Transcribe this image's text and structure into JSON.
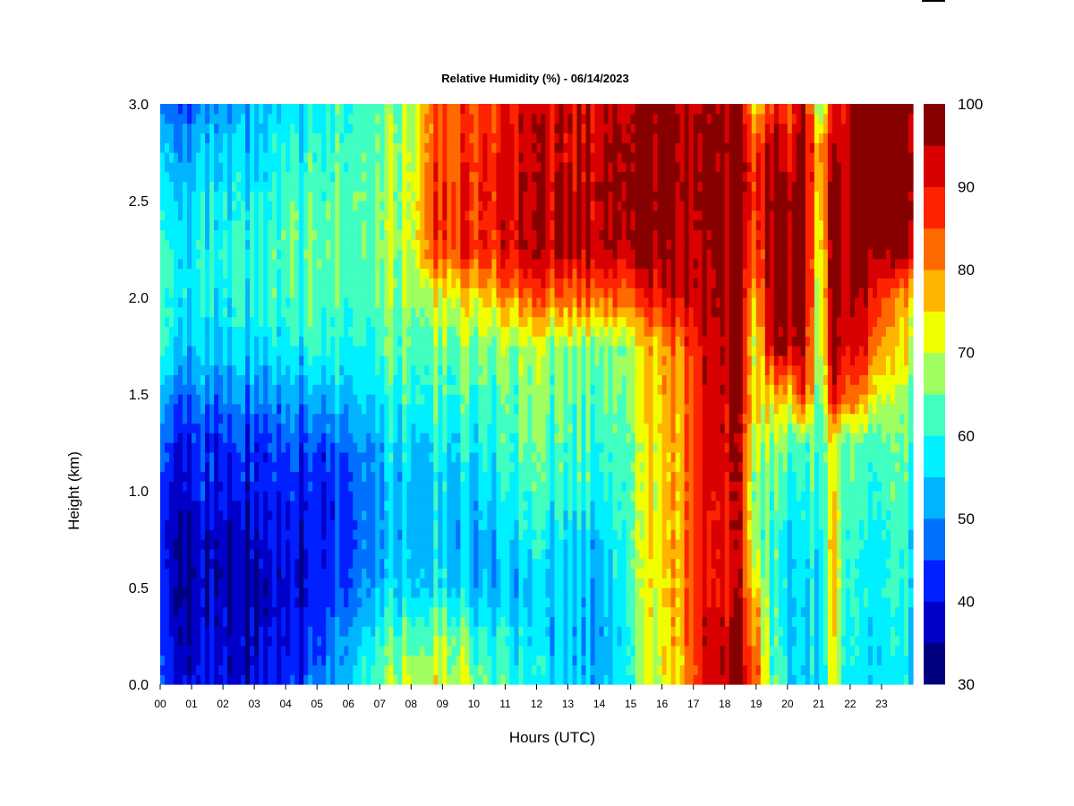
{
  "chart_data": {
    "type": "heatmap",
    "title": "Relative Humidity (%) - 06/14/2023",
    "xlabel": "Hours (UTC)",
    "ylabel": "Height (km)",
    "xlim": [
      0,
      24
    ],
    "ylim": [
      0,
      3
    ],
    "x_ticks": [
      "00",
      "01",
      "02",
      "03",
      "04",
      "05",
      "06",
      "07",
      "08",
      "09",
      "10",
      "11",
      "12",
      "13",
      "14",
      "15",
      "16",
      "17",
      "18",
      "19",
      "20",
      "21",
      "22",
      "23"
    ],
    "y_ticks": [
      "0.0",
      "0.5",
      "1.0",
      "1.5",
      "2.0",
      "2.5",
      "3.0"
    ],
    "hours": [
      0,
      0.5,
      1,
      1.5,
      2,
      2.5,
      3,
      3.5,
      4,
      4.5,
      5,
      5.5,
      6,
      6.5,
      7,
      7.5,
      8,
      8.5,
      9,
      9.5,
      10,
      10.5,
      11,
      11.5,
      12,
      12.5,
      13,
      13.5,
      14,
      14.5,
      15,
      15.5,
      16,
      16.5,
      17,
      17.5,
      18,
      18.5,
      19,
      19.5,
      20,
      20.5,
      21,
      21.5,
      22,
      22.5,
      23,
      23.5
    ],
    "heights_km": [
      0.0,
      0.25,
      0.5,
      0.75,
      1.0,
      1.25,
      1.5,
      1.75,
      2.0,
      2.25,
      2.5,
      2.75,
      3.0
    ],
    "rh_percent": [
      [
        48,
        42,
        38,
        40,
        38,
        36,
        38,
        40,
        40,
        44,
        46,
        52,
        56,
        62,
        66,
        68,
        70,
        72,
        72,
        70,
        66,
        62,
        60,
        58,
        56,
        56,
        54,
        54,
        54,
        56,
        62,
        70,
        72,
        76,
        84,
        92,
        96,
        94,
        86,
        64,
        58,
        56,
        58,
        70,
        60,
        56,
        56,
        56
      ],
      [
        44,
        40,
        36,
        38,
        36,
        34,
        36,
        38,
        38,
        40,
        42,
        48,
        54,
        58,
        62,
        62,
        64,
        66,
        68,
        66,
        62,
        60,
        58,
        56,
        54,
        54,
        54,
        52,
        52,
        54,
        62,
        70,
        74,
        78,
        86,
        94,
        96,
        92,
        82,
        62,
        56,
        56,
        58,
        72,
        60,
        56,
        56,
        56
      ],
      [
        42,
        38,
        34,
        36,
        34,
        33,
        34,
        36,
        36,
        38,
        40,
        44,
        48,
        52,
        54,
        56,
        56,
        58,
        58,
        56,
        54,
        52,
        52,
        52,
        52,
        54,
        54,
        54,
        54,
        56,
        64,
        72,
        74,
        78,
        86,
        92,
        90,
        90,
        76,
        62,
        56,
        56,
        58,
        74,
        62,
        58,
        58,
        58
      ],
      [
        42,
        38,
        36,
        36,
        34,
        34,
        36,
        38,
        38,
        38,
        40,
        42,
        46,
        50,
        52,
        54,
        54,
        56,
        56,
        54,
        52,
        52,
        54,
        56,
        56,
        56,
        56,
        56,
        56,
        58,
        66,
        72,
        76,
        78,
        86,
        92,
        92,
        90,
        66,
        62,
        58,
        58,
        60,
        74,
        62,
        58,
        58,
        58
      ],
      [
        44,
        40,
        40,
        40,
        38,
        38,
        40,
        40,
        40,
        40,
        40,
        42,
        46,
        50,
        52,
        54,
        54,
        56,
        56,
        56,
        54,
        56,
        58,
        58,
        60,
        60,
        60,
        60,
        60,
        60,
        66,
        72,
        76,
        78,
        86,
        92,
        94,
        90,
        66,
        64,
        60,
        60,
        62,
        72,
        64,
        60,
        60,
        60
      ],
      [
        48,
        44,
        42,
        42,
        40,
        42,
        42,
        42,
        44,
        44,
        44,
        46,
        50,
        52,
        54,
        56,
        56,
        58,
        58,
        58,
        58,
        60,
        60,
        62,
        62,
        62,
        62,
        62,
        62,
        62,
        66,
        72,
        76,
        78,
        86,
        94,
        94,
        90,
        70,
        68,
        64,
        64,
        64,
        70,
        66,
        62,
        62,
        62
      ],
      [
        54,
        50,
        48,
        48,
        46,
        48,
        48,
        48,
        50,
        50,
        52,
        54,
        56,
        58,
        60,
        60,
        62,
        62,
        62,
        62,
        62,
        62,
        62,
        64,
        64,
        64,
        64,
        64,
        64,
        64,
        68,
        74,
        78,
        80,
        86,
        94,
        96,
        92,
        76,
        76,
        76,
        90,
        66,
        90,
        86,
        78,
        70,
        66
      ],
      [
        60,
        58,
        54,
        54,
        52,
        54,
        54,
        56,
        56,
        58,
        60,
        60,
        62,
        62,
        64,
        64,
        64,
        66,
        66,
        66,
        66,
        66,
        66,
        66,
        66,
        66,
        66,
        66,
        66,
        66,
        70,
        76,
        78,
        82,
        88,
        94,
        96,
        94,
        70,
        94,
        96,
        96,
        68,
        96,
        94,
        88,
        78,
        72
      ],
      [
        62,
        60,
        58,
        58,
        56,
        58,
        58,
        60,
        60,
        62,
        62,
        64,
        64,
        66,
        66,
        66,
        68,
        70,
        72,
        74,
        74,
        76,
        78,
        80,
        82,
        82,
        82,
        84,
        84,
        84,
        84,
        88,
        92,
        94,
        94,
        96,
        98,
        96,
        78,
        96,
        98,
        98,
        70,
        98,
        96,
        94,
        86,
        76
      ],
      [
        62,
        60,
        58,
        58,
        58,
        58,
        60,
        60,
        62,
        62,
        64,
        64,
        66,
        66,
        68,
        68,
        70,
        84,
        86,
        88,
        88,
        88,
        90,
        92,
        92,
        94,
        94,
        94,
        96,
        96,
        96,
        98,
        98,
        96,
        94,
        98,
        98,
        96,
        86,
        96,
        98,
        98,
        72,
        98,
        98,
        98,
        96,
        96
      ],
      [
        60,
        58,
        56,
        56,
        56,
        56,
        58,
        58,
        60,
        62,
        62,
        64,
        66,
        66,
        68,
        68,
        70,
        86,
        88,
        88,
        88,
        90,
        90,
        92,
        92,
        94,
        94,
        94,
        96,
        96,
        98,
        98,
        98,
        98,
        96,
        98,
        98,
        98,
        88,
        98,
        98,
        98,
        76,
        98,
        98,
        98,
        98,
        98
      ],
      [
        56,
        54,
        52,
        54,
        52,
        54,
        54,
        56,
        58,
        58,
        60,
        62,
        64,
        66,
        66,
        68,
        70,
        84,
        86,
        86,
        88,
        88,
        90,
        90,
        92,
        92,
        92,
        94,
        94,
        96,
        98,
        98,
        98,
        98,
        96,
        98,
        98,
        98,
        88,
        96,
        90,
        98,
        80,
        94,
        98,
        98,
        98,
        98
      ],
      [
        50,
        48,
        46,
        48,
        50,
        50,
        52,
        52,
        54,
        56,
        58,
        60,
        62,
        64,
        66,
        66,
        68,
        82,
        84,
        86,
        86,
        86,
        88,
        90,
        90,
        92,
        92,
        92,
        94,
        94,
        96,
        98,
        98,
        98,
        96,
        98,
        98,
        96,
        74,
        88,
        86,
        96,
        66,
        88,
        98,
        98,
        98,
        98
      ]
    ],
    "colorbar": {
      "levels": [
        30,
        35,
        40,
        45,
        50,
        55,
        60,
        65,
        70,
        75,
        80,
        85,
        90,
        95,
        100
      ],
      "tick_labels": [
        "30",
        "40",
        "50",
        "60",
        "70",
        "80",
        "90",
        "100"
      ],
      "colors": [
        "#00007f",
        "#0000c8",
        "#0020ff",
        "#0070ff",
        "#00b4ff",
        "#00f0ff",
        "#40ffc0",
        "#a0ff60",
        "#f0ff00",
        "#ffb400",
        "#ff6a00",
        "#ff2400",
        "#d80000",
        "#870000"
      ]
    }
  }
}
